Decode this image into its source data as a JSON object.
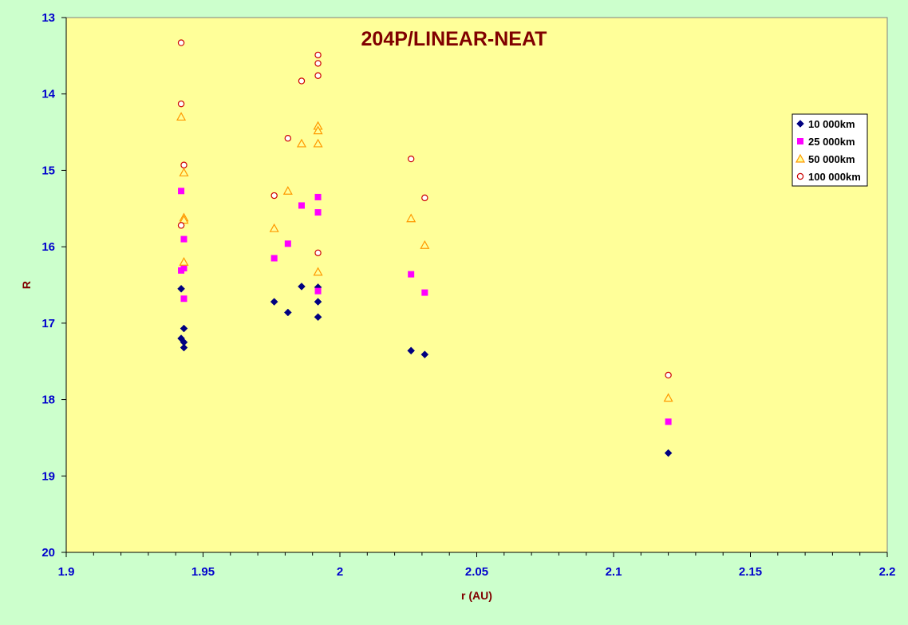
{
  "chart_data": {
    "type": "scatter",
    "title": "204P/LINEAR-NEAT",
    "xlabel": "r (AU)",
    "ylabel": "R",
    "xlim": [
      1.9,
      2.2
    ],
    "ylim": [
      13,
      20
    ],
    "y_inverted": true,
    "x_ticks": [
      "1.9",
      "1.95",
      "2",
      "2.05",
      "2.1",
      "2.15",
      "2.2"
    ],
    "y_ticks": [
      "13",
      "14",
      "15",
      "16",
      "17",
      "18",
      "19",
      "20"
    ],
    "grid": false,
    "legend_position": "right",
    "colors": {
      "page_background": "#ccffcc",
      "plot_background": "#ffff99",
      "title": "#800000",
      "axis_labels": "#800000",
      "tick_labels": "#0000cc"
    },
    "series": [
      {
        "name": "10 000km",
        "marker": "diamond",
        "color": "#000080",
        "x": [
          1.942,
          1.943,
          1.942,
          1.943,
          1.943,
          1.976,
          1.981,
          1.986,
          1.992,
          1.992,
          1.992,
          2.026,
          2.031,
          2.12
        ],
        "y": [
          16.55,
          17.07,
          17.2,
          17.25,
          17.32,
          16.72,
          16.86,
          16.52,
          16.53,
          16.72,
          16.92,
          17.36,
          17.41,
          18.7
        ]
      },
      {
        "name": "25 000km",
        "marker": "square",
        "color": "#ff00ff",
        "x": [
          1.942,
          1.943,
          1.943,
          1.942,
          1.943,
          1.976,
          1.981,
          1.986,
          1.992,
          1.992,
          1.992,
          2.026,
          2.031,
          2.12
        ],
        "y": [
          15.27,
          15.9,
          16.28,
          16.31,
          16.68,
          16.15,
          15.96,
          15.46,
          15.35,
          15.55,
          16.58,
          16.36,
          16.6,
          18.29
        ]
      },
      {
        "name": "50 000km",
        "marker": "triangle",
        "color": "#ff9900",
        "x": [
          1.942,
          1.943,
          1.943,
          1.943,
          1.943,
          1.976,
          1.981,
          1.986,
          1.992,
          1.992,
          1.992,
          1.992,
          2.026,
          2.031,
          2.12
        ],
        "y": [
          14.3,
          15.03,
          15.62,
          15.65,
          16.2,
          15.76,
          15.27,
          14.65,
          14.42,
          14.48,
          14.65,
          16.33,
          15.63,
          15.98,
          17.98
        ]
      },
      {
        "name": "100 000km",
        "marker": "circle",
        "color": "#cc0000",
        "x": [
          1.942,
          1.942,
          1.943,
          1.942,
          1.976,
          1.981,
          1.986,
          1.992,
          1.992,
          1.992,
          1.992,
          2.026,
          2.031,
          2.12
        ],
        "y": [
          13.33,
          14.13,
          14.93,
          15.72,
          15.33,
          14.58,
          13.83,
          13.49,
          13.6,
          13.76,
          16.08,
          14.85,
          15.36,
          17.68
        ]
      }
    ]
  }
}
